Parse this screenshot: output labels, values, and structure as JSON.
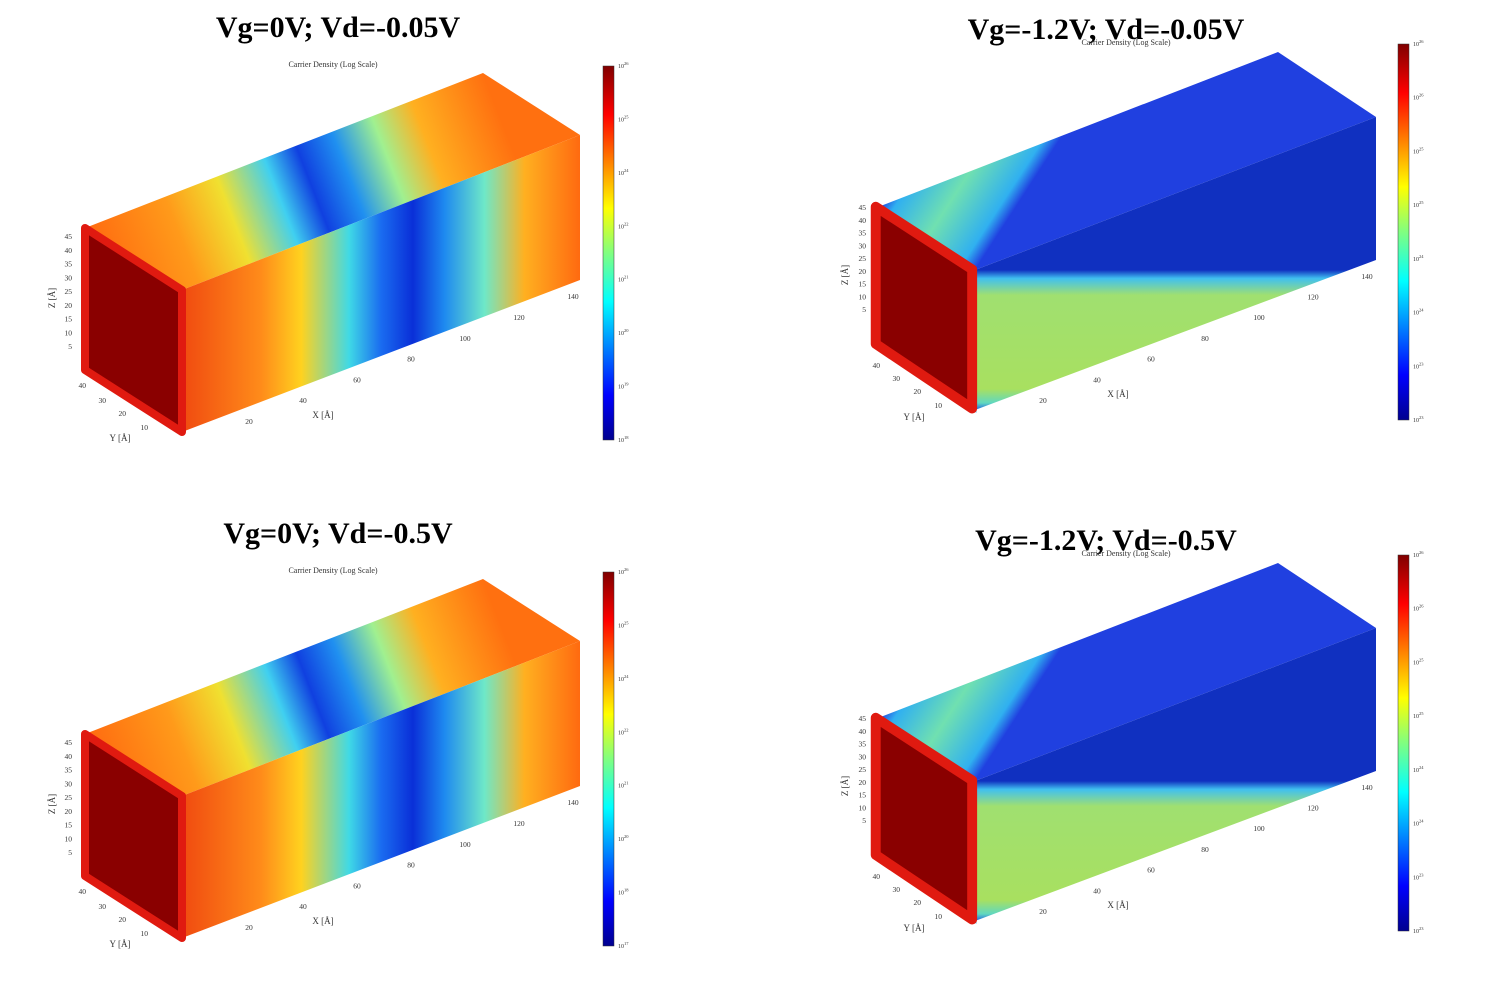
{
  "panels": [
    {
      "title": "Vg=0V; Vd=-0.05V",
      "subtitle": "Carrier Density (Log Scale)",
      "z_label": "Z [Å]",
      "y_label": "Y [Å]",
      "x_label": "X [Å]",
      "z_ticks": [
        "45",
        "40",
        "35",
        "30",
        "25",
        "20",
        "15",
        "10",
        "5"
      ],
      "y_ticks": [
        "40",
        "30",
        "20",
        "10"
      ],
      "x_ticks": [
        "20",
        "40",
        "60",
        "80",
        "100",
        "120",
        "140"
      ],
      "colorbar": {
        "base": "10",
        "exponents": [
          "26",
          "25",
          "24",
          "22",
          "21",
          "20",
          "19",
          "18"
        ]
      }
    },
    {
      "title": "Vg=-1.2V; Vd=-0.05V",
      "subtitle": "Carrier Density (Log Scale)",
      "z_label": "Z [Å]",
      "y_label": "Y [Å]",
      "x_label": "X [Å]",
      "z_ticks": [
        "45",
        "40",
        "35",
        "30",
        "25",
        "20",
        "15",
        "10",
        "5"
      ],
      "y_ticks": [
        "40",
        "30",
        "20",
        "10"
      ],
      "x_ticks": [
        "20",
        "40",
        "60",
        "80",
        "100",
        "120",
        "140"
      ],
      "colorbar": {
        "base": "10",
        "exponents": [
          "26",
          "26",
          "25",
          "25",
          "24",
          "24",
          "23",
          "23"
        ]
      }
    },
    {
      "title": "Vg=0V; Vd=-0.5V",
      "subtitle": "Carrier Density (Log Scale)",
      "z_label": "Z [Å]",
      "y_label": "Y [Å]",
      "x_label": "X [Å]",
      "z_ticks": [
        "45",
        "40",
        "35",
        "30",
        "25",
        "20",
        "15",
        "10",
        "5"
      ],
      "y_ticks": [
        "40",
        "30",
        "20",
        "10"
      ],
      "x_ticks": [
        "20",
        "40",
        "60",
        "80",
        "100",
        "120",
        "140"
      ],
      "colorbar": {
        "base": "10",
        "exponents": [
          "26",
          "25",
          "24",
          "22",
          "21",
          "20",
          "18",
          "17"
        ]
      }
    },
    {
      "title": "Vg=-1.2V; Vd=-0.5V",
      "subtitle": "Carrier Density (Log Scale)",
      "z_label": "Z [Å]",
      "y_label": "Y [Å]",
      "x_label": "X [Å]",
      "z_ticks": [
        "45",
        "40",
        "35",
        "30",
        "25",
        "20",
        "15",
        "10",
        "5"
      ],
      "y_ticks": [
        "40",
        "30",
        "20",
        "10"
      ],
      "x_ticks": [
        "20",
        "40",
        "60",
        "80",
        "100",
        "120",
        "140"
      ],
      "colorbar": {
        "base": "10",
        "exponents": [
          "26",
          "26",
          "25",
          "25",
          "24",
          "24",
          "23",
          "23"
        ]
      }
    }
  ]
}
